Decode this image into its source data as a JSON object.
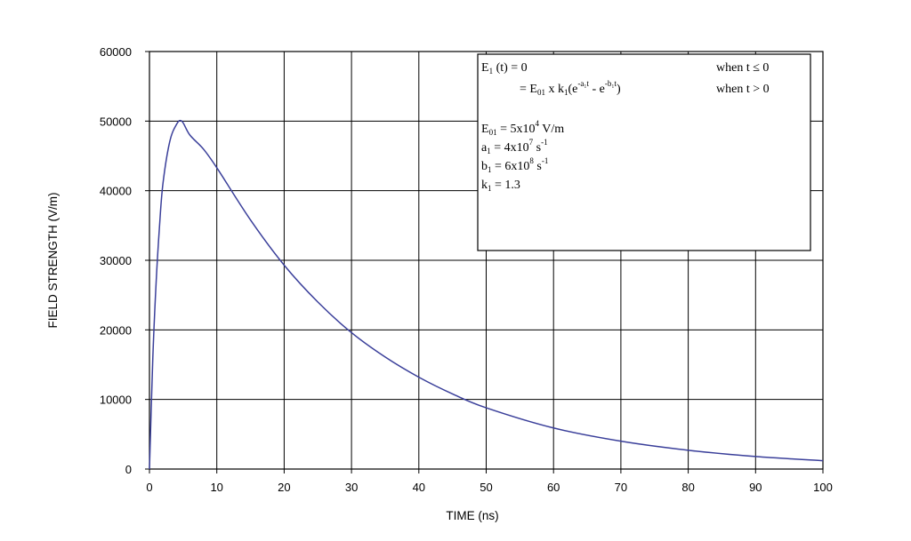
{
  "chart_data": {
    "type": "line",
    "xlabel": "TIME (ns)",
    "ylabel": "FIELD STRENGTH (V/m)",
    "xlim": [
      0,
      100
    ],
    "ylim": [
      0,
      60000
    ],
    "x_ticks": [
      "0",
      "10",
      "20",
      "30",
      "40",
      "50",
      "60",
      "70",
      "80",
      "90",
      "100"
    ],
    "y_ticks": [
      "0",
      "10000",
      "20000",
      "30000",
      "40000",
      "50000",
      "60000"
    ],
    "grid": true,
    "line_color": "#3a3f9a",
    "series": [
      {
        "x": [
          0,
          0.5,
          1,
          1.5,
          2,
          3,
          4,
          4.8,
          6,
          8,
          10,
          15,
          20,
          25,
          30,
          35,
          40,
          45,
          50,
          60,
          70,
          80,
          90,
          100
        ],
        "y": [
          0,
          16000,
          27000,
          35000,
          41000,
          47000,
          49500,
          50000,
          48000,
          46000,
          43300,
          35800,
          29300,
          24000,
          19600,
          16100,
          13200,
          10800,
          8800,
          5900,
          4000,
          2700,
          1800,
          1200
        ]
      }
    ],
    "annotation": {
      "line1": {
        "lhs": "E",
        "lhs_sub": "1",
        "rest": " (t) = 0",
        "cond": "when t ≤ 0"
      },
      "line2": {
        "lead": "= E",
        "lead_sub": "01",
        "mid": " x  k",
        "mid_sub": "1",
        "paren_open": "(e",
        "exp1": "-a₁t",
        "minus": " - e",
        "exp2": "-b₁t",
        "paren_close": ")",
        "cond": "when t > 0"
      },
      "e01": {
        "name": "E",
        "sub": "01",
        "value": " =  5x10",
        "exp": "4",
        "unit": " V/m"
      },
      "a1": {
        "name": "a",
        "sub": "1",
        "value": " = 4x10",
        "exp": "7",
        "unit": " s",
        "unit_exp": "-1"
      },
      "b1": {
        "name": "b",
        "sub": "1",
        "value": " = 6x10",
        "exp": "8",
        "unit": " s",
        "unit_exp": "-1"
      },
      "k1": {
        "name": "k",
        "sub": "1",
        "value": " = 1.3"
      }
    }
  }
}
